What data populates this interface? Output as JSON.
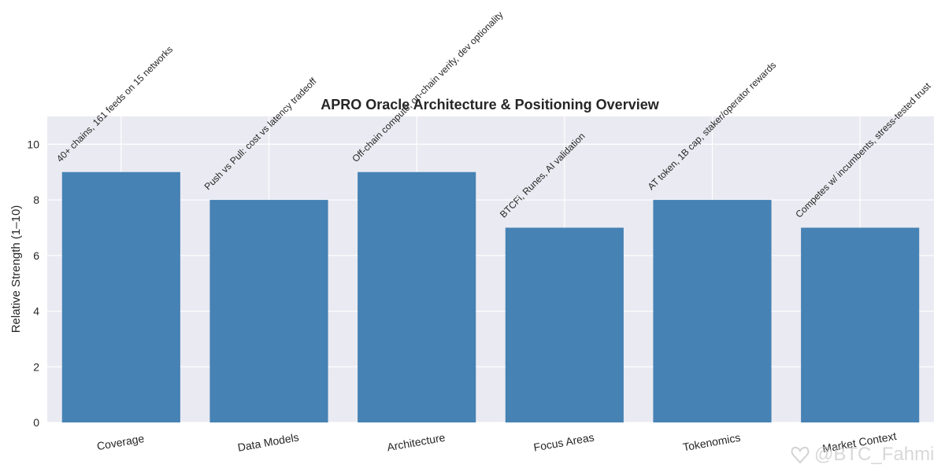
{
  "chart_data": {
    "type": "bar",
    "title": "APRO Oracle Architecture & Positioning Overview",
    "xlabel": "",
    "ylabel": "Relative Strength (1–10)",
    "ylim": [
      0,
      11
    ],
    "yticks": [
      0,
      2,
      4,
      6,
      8,
      10
    ],
    "grid": true,
    "categories": [
      "Coverage",
      "Data Models",
      "Architecture",
      "Focus Areas",
      "Tokenomics",
      "Market Context"
    ],
    "values": [
      9,
      8,
      9,
      7,
      8,
      7
    ],
    "annotations": [
      "40+ chains, 161 feeds on 15 networks",
      "Push vs Pull: cost vs latency tradeoff",
      "Off-chain compute, on-chain verify, dev optionality",
      "BTCFi, Runes, AI validation",
      "AT token, 1B cap, staker/operator rewards",
      "Competes w/ incumbents, stress-tested trust"
    ],
    "colors": {
      "bar": "#4682b4",
      "plot_background": "#eaeaf2",
      "grid": "#ffffff"
    }
  },
  "watermark": {
    "icon": "heart-icon",
    "text": "@BTC_Fahmi"
  }
}
